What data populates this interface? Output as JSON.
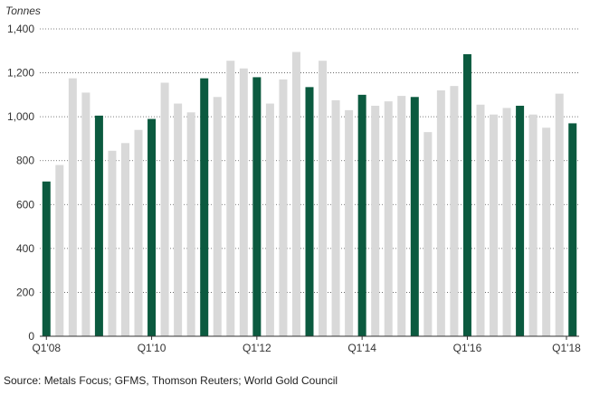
{
  "chart_data": {
    "type": "bar",
    "ylabel": "Tonnes",
    "ylim": [
      0,
      1400
    ],
    "yticks": [
      "0",
      "200",
      "400",
      "600",
      "800",
      "1,000",
      "1,200",
      "1,400"
    ],
    "ytick_values": [
      0,
      200,
      400,
      600,
      800,
      1000,
      1200,
      1400
    ],
    "categories": [
      "Q1'08",
      "Q2'08",
      "Q3'08",
      "Q4'08",
      "Q1'09",
      "Q2'09",
      "Q3'09",
      "Q4'09",
      "Q1'10",
      "Q2'10",
      "Q3'10",
      "Q4'10",
      "Q1'11",
      "Q2'11",
      "Q3'11",
      "Q4'11",
      "Q1'12",
      "Q2'12",
      "Q3'12",
      "Q4'12",
      "Q1'13",
      "Q2'13",
      "Q3'13",
      "Q4'13",
      "Q1'14",
      "Q2'14",
      "Q3'14",
      "Q4'14",
      "Q1'15",
      "Q2'15",
      "Q3'15",
      "Q4'15",
      "Q1'16",
      "Q2'16",
      "Q3'16",
      "Q4'16",
      "Q1'17",
      "Q2'17",
      "Q3'17",
      "Q4'17",
      "Q1'18"
    ],
    "values": [
      705,
      780,
      1175,
      1110,
      1005,
      845,
      880,
      940,
      990,
      1155,
      1060,
      1020,
      1175,
      1090,
      1255,
      1220,
      1180,
      1060,
      1170,
      1295,
      1135,
      1255,
      1075,
      1030,
      1100,
      1050,
      1070,
      1095,
      1090,
      930,
      1120,
      1140,
      1285,
      1055,
      1010,
      1040,
      1050,
      1010,
      950,
      1105,
      970
    ],
    "highlight_every": 4,
    "xtick_labels": [
      {
        "index": 0,
        "label": "Q1'08"
      },
      {
        "index": 8,
        "label": "Q1'10"
      },
      {
        "index": 16,
        "label": "Q1'12"
      },
      {
        "index": 24,
        "label": "Q1'14"
      },
      {
        "index": 32,
        "label": "Q1'16"
      },
      {
        "index": 40,
        "label": "Q1'18"
      }
    ],
    "grid": true,
    "colors": {
      "highlight": "#0b5a3f",
      "other": "#d9d9d9"
    }
  },
  "source": "Source: Metals Focus; GFMS, Thomson Reuters; World Gold Council"
}
